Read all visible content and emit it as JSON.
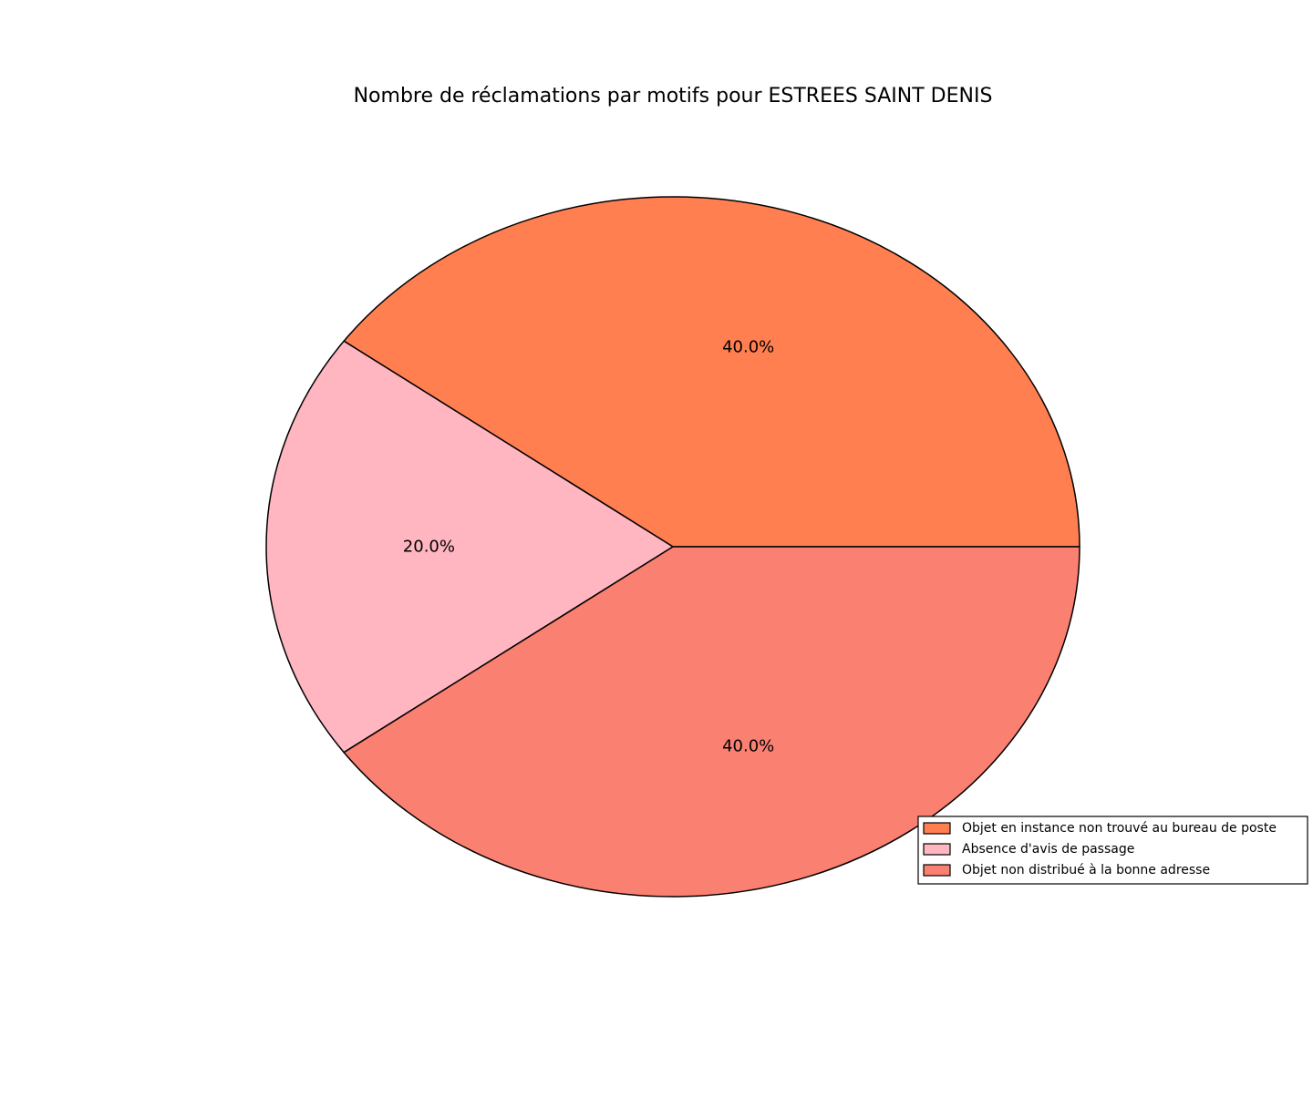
{
  "chart_data": {
    "type": "pie",
    "title": "Nombre de réclamations par motifs pour ESTREES SAINT DENIS",
    "slices": [
      {
        "label": "Objet en instance non trouvé au bureau de poste",
        "percent": 40.0,
        "percent_label": "40.0%",
        "color": "#FF7F50"
      },
      {
        "label": "Absence d'avis de passage",
        "percent": 20.0,
        "percent_label": "20.0%",
        "color": "#FFB6C1"
      },
      {
        "label": "Objet non distribué à la bonne adresse",
        "percent": 40.0,
        "percent_label": "40.0%",
        "color": "#FA8072"
      }
    ],
    "start_angle_deg": 0,
    "direction": "counterclockwise",
    "edge_color": "#000000",
    "legend_position": "lower-right"
  }
}
